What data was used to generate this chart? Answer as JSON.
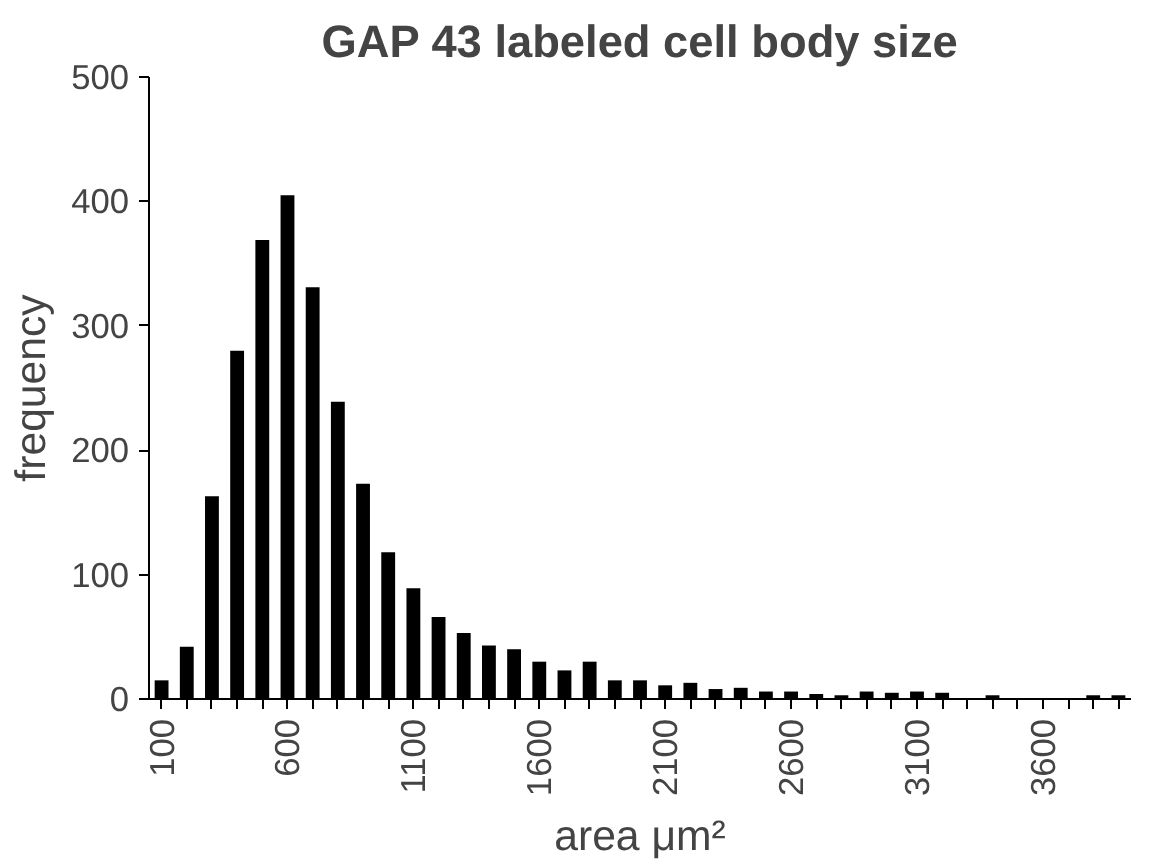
{
  "chart_data": {
    "type": "bar",
    "title": "GAP 43 labeled cell body size",
    "xlabel": "area μm²",
    "ylabel": "frequency",
    "categories": [
      "100",
      null,
      null,
      null,
      null,
      "600",
      null,
      null,
      null,
      null,
      "1100",
      null,
      null,
      null,
      null,
      "1600",
      null,
      null,
      null,
      null,
      "2100",
      null,
      null,
      null,
      null,
      "2600",
      null,
      null,
      null,
      null,
      "3100",
      null,
      null,
      null,
      null,
      "3600",
      null,
      null,
      null
    ],
    "values": [
      15,
      42,
      163,
      280,
      369,
      405,
      331,
      239,
      173,
      118,
      89,
      66,
      53,
      43,
      40,
      30,
      23,
      30,
      15,
      15,
      11,
      13,
      8,
      9,
      6,
      6,
      4,
      3,
      6,
      5,
      6,
      5,
      0,
      3,
      0,
      0,
      0,
      3,
      3
    ],
    "color": "#000000",
    "ylim": [
      0,
      500
    ],
    "yticks": [
      0,
      100,
      200,
      300,
      400,
      500
    ],
    "grid": false
  }
}
